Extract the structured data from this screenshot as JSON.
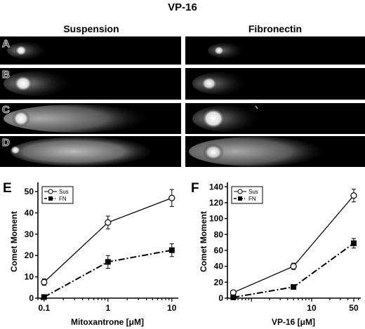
{
  "figure": {
    "title": "VP-16",
    "columns": [
      "Suspension",
      "Fibronectin"
    ],
    "rows": [
      "A",
      "B",
      "C",
      "D"
    ]
  },
  "chart_data": [
    {
      "type": "line",
      "panel": "E",
      "xlabel": "Mitoxantrone [μM]",
      "ylabel": "Comet Moment",
      "x_scale": "log",
      "xlim": [
        0.08,
        12
      ],
      "ylim": [
        0,
        53
      ],
      "x_ticks": [
        0.1,
        1,
        10
      ],
      "x_tick_labels": [
        "0.1",
        "1",
        "10"
      ],
      "y_ticks": [
        0,
        10,
        20,
        30,
        40,
        50
      ],
      "y_tick_labels": [
        "0",
        "10",
        "20",
        "30",
        "40",
        "50"
      ],
      "x": [
        0.1,
        1,
        10
      ],
      "series": [
        {
          "name": "Sus",
          "marker": "open-circle",
          "line": "solid",
          "values": [
            7.5,
            35.5,
            47
          ],
          "errors": [
            1.5,
            3,
            4
          ]
        },
        {
          "name": "FN",
          "marker": "filled-square",
          "line": "dash-dot",
          "values": [
            0.5,
            17,
            22.5
          ],
          "errors": [
            0.5,
            3,
            3
          ]
        }
      ],
      "legend_position": "top-left"
    },
    {
      "type": "line",
      "panel": "F",
      "xlabel": "VP-16 [μM]",
      "ylabel": "Comet Moment",
      "x_scale": "log",
      "xlim": [
        0.4,
        62
      ],
      "ylim": [
        0,
        142
      ],
      "x_ticks": [
        1,
        10,
        50
      ],
      "x_tick_labels": [
        "",
        "10",
        "50"
      ],
      "y_ticks": [
        0,
        20,
        40,
        60,
        80,
        100,
        120,
        140
      ],
      "y_tick_labels": [
        "0",
        "20",
        "40",
        "60",
        "80",
        "100",
        "120",
        "140"
      ],
      "x": [
        0.5,
        5,
        50
      ],
      "series": [
        {
          "name": "Sus",
          "marker": "open-circle",
          "line": "solid",
          "values": [
            7,
            40,
            129
          ],
          "errors": [
            2,
            4,
            8
          ]
        },
        {
          "name": "FN",
          "marker": "filled-square",
          "line": "dash-dot",
          "values": [
            1,
            14,
            69
          ],
          "errors": [
            1,
            2,
            6
          ]
        }
      ],
      "legend_position": "top-left"
    }
  ]
}
